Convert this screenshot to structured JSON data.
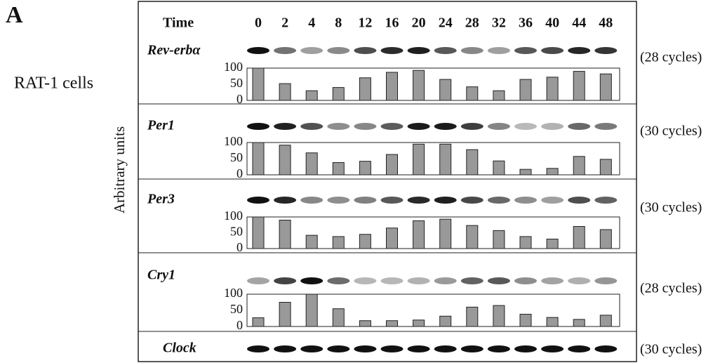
{
  "header": {
    "panel": "A",
    "cell_line": "RAT-1 cells",
    "y_label": "Arbitrary units",
    "time_label": "Time",
    "times": [
      0,
      2,
      4,
      8,
      12,
      16,
      20,
      24,
      28,
      32,
      36,
      40,
      44,
      48
    ]
  },
  "clock": {
    "title": "Clock",
    "annotation": "(30 cycles)"
  },
  "chart_data": [
    {
      "type": "bar",
      "title": "Rev-erbα",
      "annotation": "(28 cycles)",
      "color": "#999999",
      "values": [
        100,
        52,
        30,
        40,
        70,
        87,
        93,
        65,
        42,
        30,
        65,
        72,
        90,
        82
      ],
      "ylim": [
        0,
        100
      ],
      "yticks": [
        0,
        50,
        100
      ]
    },
    {
      "type": "bar",
      "title": "Per1",
      "annotation": "(30 cycles)",
      "color": "#999999",
      "values": [
        100,
        92,
        68,
        38,
        42,
        63,
        95,
        95,
        78,
        43,
        17,
        20,
        57,
        48
      ],
      "ylim": [
        0,
        100
      ],
      "yticks": [
        0,
        50,
        100
      ]
    },
    {
      "type": "bar",
      "title": "Per3",
      "annotation": "(30 cycles)",
      "color": "#999999",
      "values": [
        100,
        90,
        42,
        38,
        45,
        65,
        88,
        93,
        73,
        57,
        38,
        30,
        70,
        60
      ],
      "ylim": [
        0,
        100
      ],
      "yticks": [
        0,
        50,
        100
      ]
    },
    {
      "type": "bar",
      "title": "Cry1",
      "annotation": "(28 cycles)",
      "color": "#999999",
      "values": [
        27,
        75,
        100,
        55,
        18,
        18,
        20,
        32,
        60,
        65,
        38,
        28,
        22,
        35
      ],
      "ylim": [
        0,
        100
      ],
      "yticks": [
        0,
        50,
        100
      ]
    }
  ]
}
